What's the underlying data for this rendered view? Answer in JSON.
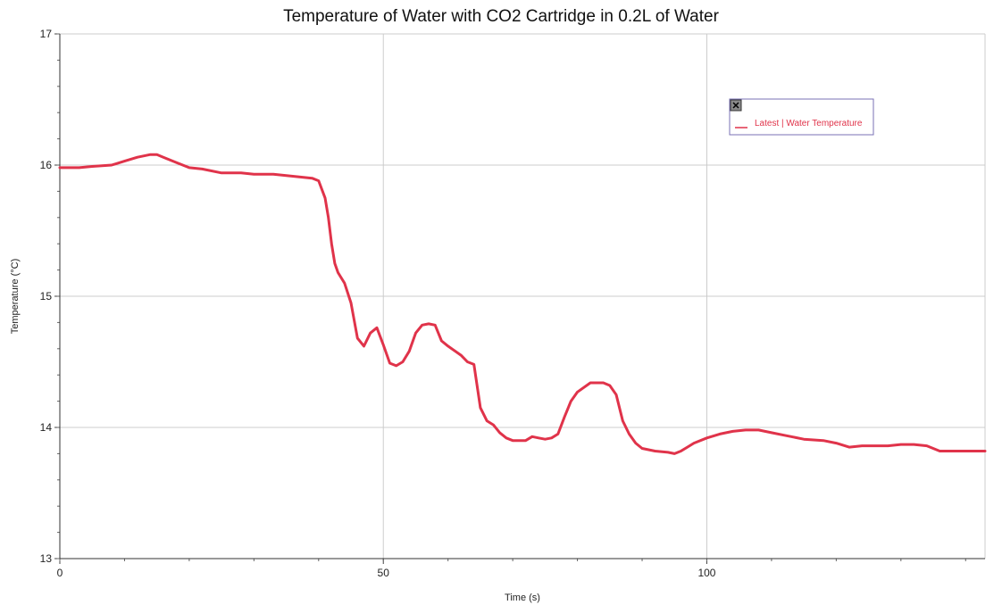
{
  "chart_data": {
    "type": "line",
    "title": "Temperature of Water with CO2 Cartridge in 0.2L of Water",
    "xlabel": "Time (s)",
    "ylabel": "Temperature (°C)",
    "xlim": [
      0,
      143
    ],
    "ylim": [
      13,
      17
    ],
    "x_ticks": [
      0,
      50,
      100
    ],
    "x_minor_step": 10,
    "y_ticks": [
      13,
      14,
      15,
      16,
      17
    ],
    "y_minor_step": 0.2,
    "grid": true,
    "legend_position": "top-right",
    "legend_close_icon": "close-icon",
    "series": [
      {
        "name": "Latest | Water Temperature",
        "color": "#e0334a",
        "x": [
          0,
          3,
          5,
          8,
          10,
          12,
          14,
          15,
          16,
          18,
          20,
          22,
          25,
          28,
          30,
          33,
          35,
          37,
          39,
          40,
          41,
          41.5,
          42,
          42.5,
          43,
          44,
          45,
          46,
          47,
          48,
          49,
          50,
          51,
          52,
          53,
          54,
          55,
          56,
          57,
          58,
          59,
          60,
          62,
          63,
          64,
          65,
          66,
          67,
          68,
          69,
          70,
          72,
          73,
          74,
          75,
          76,
          77,
          78,
          79,
          80,
          82,
          83,
          84,
          85,
          86,
          87,
          88,
          89,
          90,
          92,
          94,
          95,
          96,
          97,
          98,
          100,
          102,
          104,
          106,
          108,
          110,
          112,
          115,
          118,
          120,
          122,
          124,
          126,
          128,
          130,
          132,
          134,
          136,
          138,
          140,
          143
        ],
        "y": [
          15.98,
          15.98,
          15.99,
          16.0,
          16.03,
          16.06,
          16.08,
          16.08,
          16.06,
          16.02,
          15.98,
          15.97,
          15.94,
          15.94,
          15.93,
          15.93,
          15.92,
          15.91,
          15.9,
          15.88,
          15.75,
          15.6,
          15.4,
          15.25,
          15.18,
          15.1,
          14.95,
          14.68,
          14.62,
          14.72,
          14.76,
          14.63,
          14.49,
          14.47,
          14.5,
          14.58,
          14.72,
          14.78,
          14.79,
          14.78,
          14.66,
          14.62,
          14.55,
          14.5,
          14.48,
          14.15,
          14.05,
          14.02,
          13.96,
          13.92,
          13.9,
          13.9,
          13.93,
          13.92,
          13.91,
          13.92,
          13.95,
          14.08,
          14.2,
          14.27,
          14.34,
          14.34,
          14.34,
          14.32,
          14.25,
          14.05,
          13.95,
          13.88,
          13.84,
          13.82,
          13.81,
          13.8,
          13.82,
          13.85,
          13.88,
          13.92,
          13.95,
          13.97,
          13.98,
          13.98,
          13.96,
          13.94,
          13.91,
          13.9,
          13.88,
          13.85,
          13.86,
          13.86,
          13.86,
          13.87,
          13.87,
          13.86,
          13.82,
          13.82,
          13.82,
          13.82
        ]
      }
    ]
  }
}
